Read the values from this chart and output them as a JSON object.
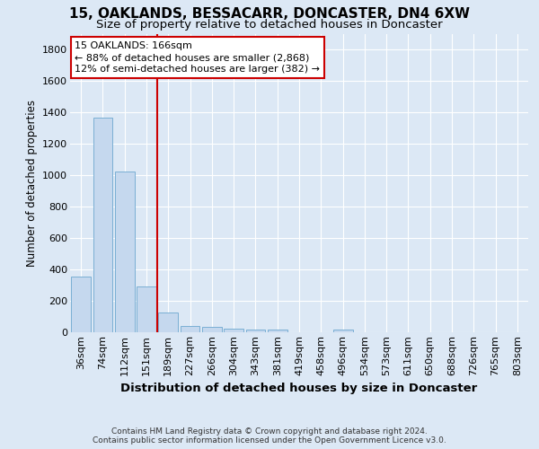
{
  "title": "15, OAKLANDS, BESSACARR, DONCASTER, DN4 6XW",
  "subtitle": "Size of property relative to detached houses in Doncaster",
  "xlabel": "Distribution of detached houses by size in Doncaster",
  "ylabel": "Number of detached properties",
  "bar_labels": [
    "36sqm",
    "74sqm",
    "112sqm",
    "151sqm",
    "189sqm",
    "227sqm",
    "266sqm",
    "304sqm",
    "343sqm",
    "381sqm",
    "419sqm",
    "458sqm",
    "496sqm",
    "534sqm",
    "573sqm",
    "611sqm",
    "650sqm",
    "688sqm",
    "726sqm",
    "765sqm",
    "803sqm"
  ],
  "bar_values": [
    355,
    1365,
    1025,
    290,
    125,
    42,
    35,
    25,
    20,
    15,
    0,
    0,
    20,
    0,
    0,
    0,
    0,
    0,
    0,
    0,
    0
  ],
  "bar_color": "#c5d8ee",
  "bar_edge_color": "#7aafd4",
  "vline_position": 3.5,
  "vline_color": "#cc0000",
  "annotation_line1": "15 OAKLANDS: 166sqm",
  "annotation_line2": "← 88% of detached houses are smaller (2,868)",
  "annotation_line3": "12% of semi-detached houses are larger (382) →",
  "ylim": [
    0,
    1900
  ],
  "yticks": [
    0,
    200,
    400,
    600,
    800,
    1000,
    1200,
    1400,
    1600,
    1800
  ],
  "bg_color": "#dce8f5",
  "grid_color": "#ffffff",
  "footer_line1": "Contains HM Land Registry data © Crown copyright and database right 2024.",
  "footer_line2": "Contains public sector information licensed under the Open Government Licence v3.0.",
  "title_fontsize": 11,
  "subtitle_fontsize": 9.5,
  "xlabel_fontsize": 9.5,
  "ylabel_fontsize": 8.5,
  "tick_fontsize": 8,
  "annotation_fontsize": 8
}
